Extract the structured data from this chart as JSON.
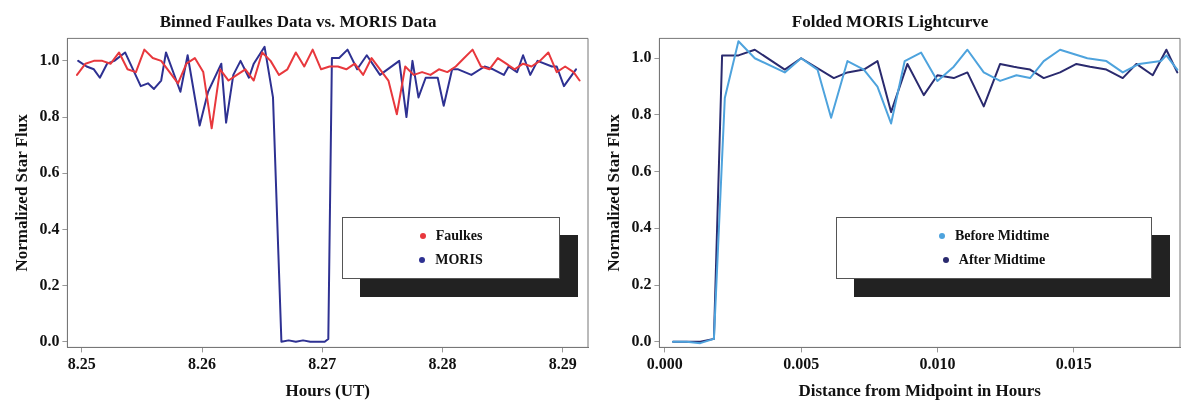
{
  "chart_data": [
    {
      "type": "line",
      "title": "Binned Faulkes Data vs. MORIS Data",
      "xlabel": "Hours (UT)",
      "ylabel": "Normalized Star Flux",
      "xlim": [
        8.2488,
        8.2921
      ],
      "xticks": [
        8.25,
        8.26,
        8.27,
        8.28,
        8.29
      ],
      "ylim": [
        -0.02,
        1.08
      ],
      "yticks": [
        {
          "value": 0,
          "label": "0.0"
        },
        {
          "value": 0.2,
          "label": "0.2"
        },
        {
          "value": 0.4,
          "label": "0.4"
        },
        {
          "value": 0.6,
          "label": "0.6"
        },
        {
          "value": 0.8,
          "label": "0.8"
        },
        {
          "value": 1,
          "label": "1.0"
        }
      ],
      "grid": false,
      "legend": "bottom right",
      "marker": "none",
      "line_style": "solid",
      "series": [
        {
          "name": "Faulkes",
          "color": "#e8383d",
          "x": [
            8.2496,
            8.2503,
            8.251,
            8.2517,
            8.2524,
            8.2531,
            8.2538,
            8.2545,
            8.2552,
            8.2559,
            8.2566,
            8.2573,
            8.258,
            8.2587,
            8.2594,
            8.2601,
            8.2608,
            8.2615,
            8.2622,
            8.2629,
            8.2636,
            8.2643,
            8.265,
            8.2657,
            8.2664,
            8.2671,
            8.2678,
            8.2685,
            8.2692,
            8.2699,
            8.2706,
            8.2713,
            8.272,
            8.2727,
            8.2734,
            8.2741,
            8.2748,
            8.2755,
            8.2762,
            8.2769,
            8.2776,
            8.2783,
            8.279,
            8.2797,
            8.2804,
            8.2811,
            8.2818,
            8.2825,
            8.2832,
            8.2839,
            8.2846,
            8.2853,
            8.286,
            8.2867,
            8.2874,
            8.2881,
            8.2888,
            8.2895,
            8.2902,
            8.2909,
            8.2914
          ],
          "values": [
            0.95,
            0.99,
            1.0,
            1.0,
            0.99,
            1.03,
            0.97,
            0.96,
            1.04,
            1.01,
            1.0,
            0.96,
            0.92,
            0.99,
            1.01,
            0.96,
            0.76,
            0.97,
            0.93,
            0.95,
            0.97,
            0.93,
            1.03,
            1.0,
            0.95,
            0.97,
            1.03,
            0.98,
            1.04,
            0.97,
            0.98,
            0.98,
            0.97,
            0.99,
            0.95,
            1.01,
            0.97,
            0.93,
            0.81,
            0.98,
            0.95,
            0.96,
            0.95,
            0.97,
            0.96,
            0.98,
            1.01,
            1.04,
            0.98,
            0.97,
            1.01,
            0.99,
            0.97,
            0.99,
            0.98,
            1.0,
            1.03,
            0.96,
            0.98,
            0.96,
            0.93
          ]
        },
        {
          "name": "MORIS",
          "color": "#2e3192",
          "x": [
            8.2497,
            8.2504,
            8.251,
            8.2515,
            8.2521,
            8.2527,
            8.2536,
            8.2549,
            8.2555,
            8.256,
            8.2566,
            8.257,
            8.2582,
            8.2588,
            8.2598,
            8.2605,
            8.2616,
            8.262,
            8.2626,
            8.2632,
            8.2639,
            8.2643,
            8.2652,
            8.2659,
            8.2666,
            8.2672,
            8.2678,
            8.2684,
            8.269,
            8.2696,
            8.2702,
            8.2705,
            8.2708,
            8.2714,
            8.2721,
            8.2729,
            8.2737,
            8.2748,
            8.2764,
            8.277,
            8.2775,
            8.278,
            8.2786,
            8.2796,
            8.2801,
            8.2808,
            8.2813,
            8.2824,
            8.2835,
            8.2842,
            8.2851,
            8.2855,
            8.2862,
            8.2867,
            8.2873,
            8.2879,
            8.2891,
            8.2895,
            8.2901,
            8.2911
          ],
          "values": [
            1.0,
            0.98,
            0.97,
            0.94,
            0.99,
            1.0,
            1.03,
            0.91,
            0.92,
            0.9,
            0.93,
            1.03,
            0.89,
            1.02,
            0.77,
            0.89,
            0.99,
            0.78,
            0.95,
            1.0,
            0.94,
            0.99,
            1.05,
            0.87,
            0.0,
            0.005,
            0.0,
            0.005,
            0.0,
            0.0,
            0.0,
            0.01,
            1.01,
            1.01,
            1.04,
            0.97,
            1.02,
            0.95,
            1.0,
            0.8,
            1.0,
            0.87,
            0.94,
            0.94,
            0.84,
            0.97,
            0.97,
            0.95,
            0.98,
            0.97,
            0.95,
            0.98,
            0.96,
            1.02,
            0.95,
            1.0,
            0.98,
            0.98,
            0.91,
            0.97
          ]
        }
      ]
    },
    {
      "type": "line",
      "title": "Folded MORIS Lightcurve",
      "xlabel": "Distance from Midpoint in Hours",
      "ylabel": "Normalized Star Flux",
      "xlim": [
        -0.0002,
        0.0189
      ],
      "xticks": [
        {
          "value": 0,
          "label": "0.000"
        },
        {
          "value": 0.005,
          "label": "0.005"
        },
        {
          "value": 0.01,
          "label": "0.010"
        },
        {
          "value": 0.015,
          "label": "0.015"
        }
      ],
      "ylim": [
        -0.02,
        1.07
      ],
      "yticks": [
        {
          "value": 0,
          "label": "0.0"
        },
        {
          "value": 0.2,
          "label": "0.2"
        },
        {
          "value": 0.4,
          "label": "0.4"
        },
        {
          "value": 0.6,
          "label": "0.6"
        },
        {
          "value": 0.8,
          "label": "0.8"
        },
        {
          "value": 1,
          "label": "1.0"
        }
      ],
      "grid": false,
      "legend": "bottom right",
      "marker": "none",
      "line_style": "solid",
      "series": [
        {
          "name": "Before Midtime",
          "color": "#4ea3dd",
          "x": [
            0.0003,
            0.0008,
            0.0013,
            0.0018,
            0.0022,
            0.0027,
            0.0033,
            0.0044,
            0.005,
            0.0056,
            0.0061,
            0.0067,
            0.0073,
            0.0078,
            0.0083,
            0.0088,
            0.0094,
            0.01,
            0.0106,
            0.0111,
            0.0117,
            0.0123,
            0.0129,
            0.0134,
            0.0139,
            0.0145,
            0.0155,
            0.0162,
            0.0168,
            0.0174,
            0.0182,
            0.0184,
            0.0188
          ],
          "values": [
            0.0,
            0.0,
            -0.005,
            0.01,
            0.86,
            1.06,
            1.0,
            0.95,
            1.0,
            0.96,
            0.79,
            0.99,
            0.96,
            0.9,
            0.77,
            0.99,
            1.02,
            0.92,
            0.97,
            1.03,
            0.95,
            0.92,
            0.94,
            0.93,
            0.99,
            1.03,
            1.0,
            0.99,
            0.95,
            0.98,
            0.99,
            1.01,
            0.96
          ]
        },
        {
          "name": "After Midtime",
          "color": "#2a2a6e",
          "x": [
            0.0003,
            0.0008,
            0.0013,
            0.0018,
            0.0021,
            0.0027,
            0.0033,
            0.0044,
            0.005,
            0.0062,
            0.0067,
            0.0073,
            0.0078,
            0.0083,
            0.0089,
            0.0095,
            0.01,
            0.0106,
            0.0111,
            0.0117,
            0.0123,
            0.0128,
            0.0134,
            0.0139,
            0.0145,
            0.0151,
            0.0156,
            0.0162,
            0.0168,
            0.0173,
            0.0179,
            0.0184,
            0.0188
          ],
          "values": [
            0.0,
            0.0,
            0.0,
            0.01,
            1.01,
            1.01,
            1.03,
            0.96,
            1.0,
            0.93,
            0.95,
            0.96,
            0.99,
            0.81,
            0.98,
            0.87,
            0.94,
            0.93,
            0.95,
            0.83,
            0.98,
            0.97,
            0.96,
            0.93,
            0.95,
            0.98,
            0.97,
            0.96,
            0.93,
            0.98,
            0.94,
            1.03,
            0.95
          ]
        }
      ]
    }
  ]
}
